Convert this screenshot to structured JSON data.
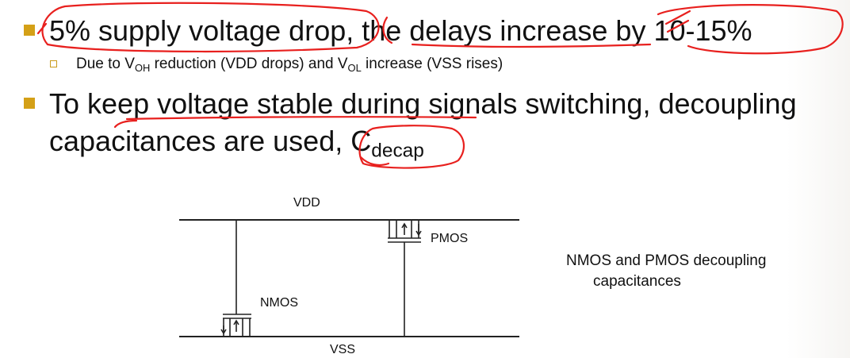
{
  "bullets": {
    "b1": {
      "text": "5% supply voltage drop, the delays increase by 10-15%"
    },
    "b1_sub": {
      "prefix": "Due to V",
      "voh_sub": "OH",
      "middle": " reduction (VDD drops) and V",
      "vol_sub": "OL",
      "suffix": " increase (VSS rises)"
    },
    "b2": {
      "line1": "To keep voltage stable during signals switching, decoupling",
      "line2_prefix": "capacitances are used, C",
      "line2_sub": "decap"
    }
  },
  "diagram": {
    "vdd_label": "VDD",
    "vss_label": "VSS",
    "pmos_label": "PMOS",
    "nmos_label": "NMOS",
    "caption_line1": "NMOS and PMOS decoupling",
    "caption_line2": "capacitances"
  },
  "colors": {
    "bullet": "#d4a017",
    "annotation": "#e8201e"
  }
}
